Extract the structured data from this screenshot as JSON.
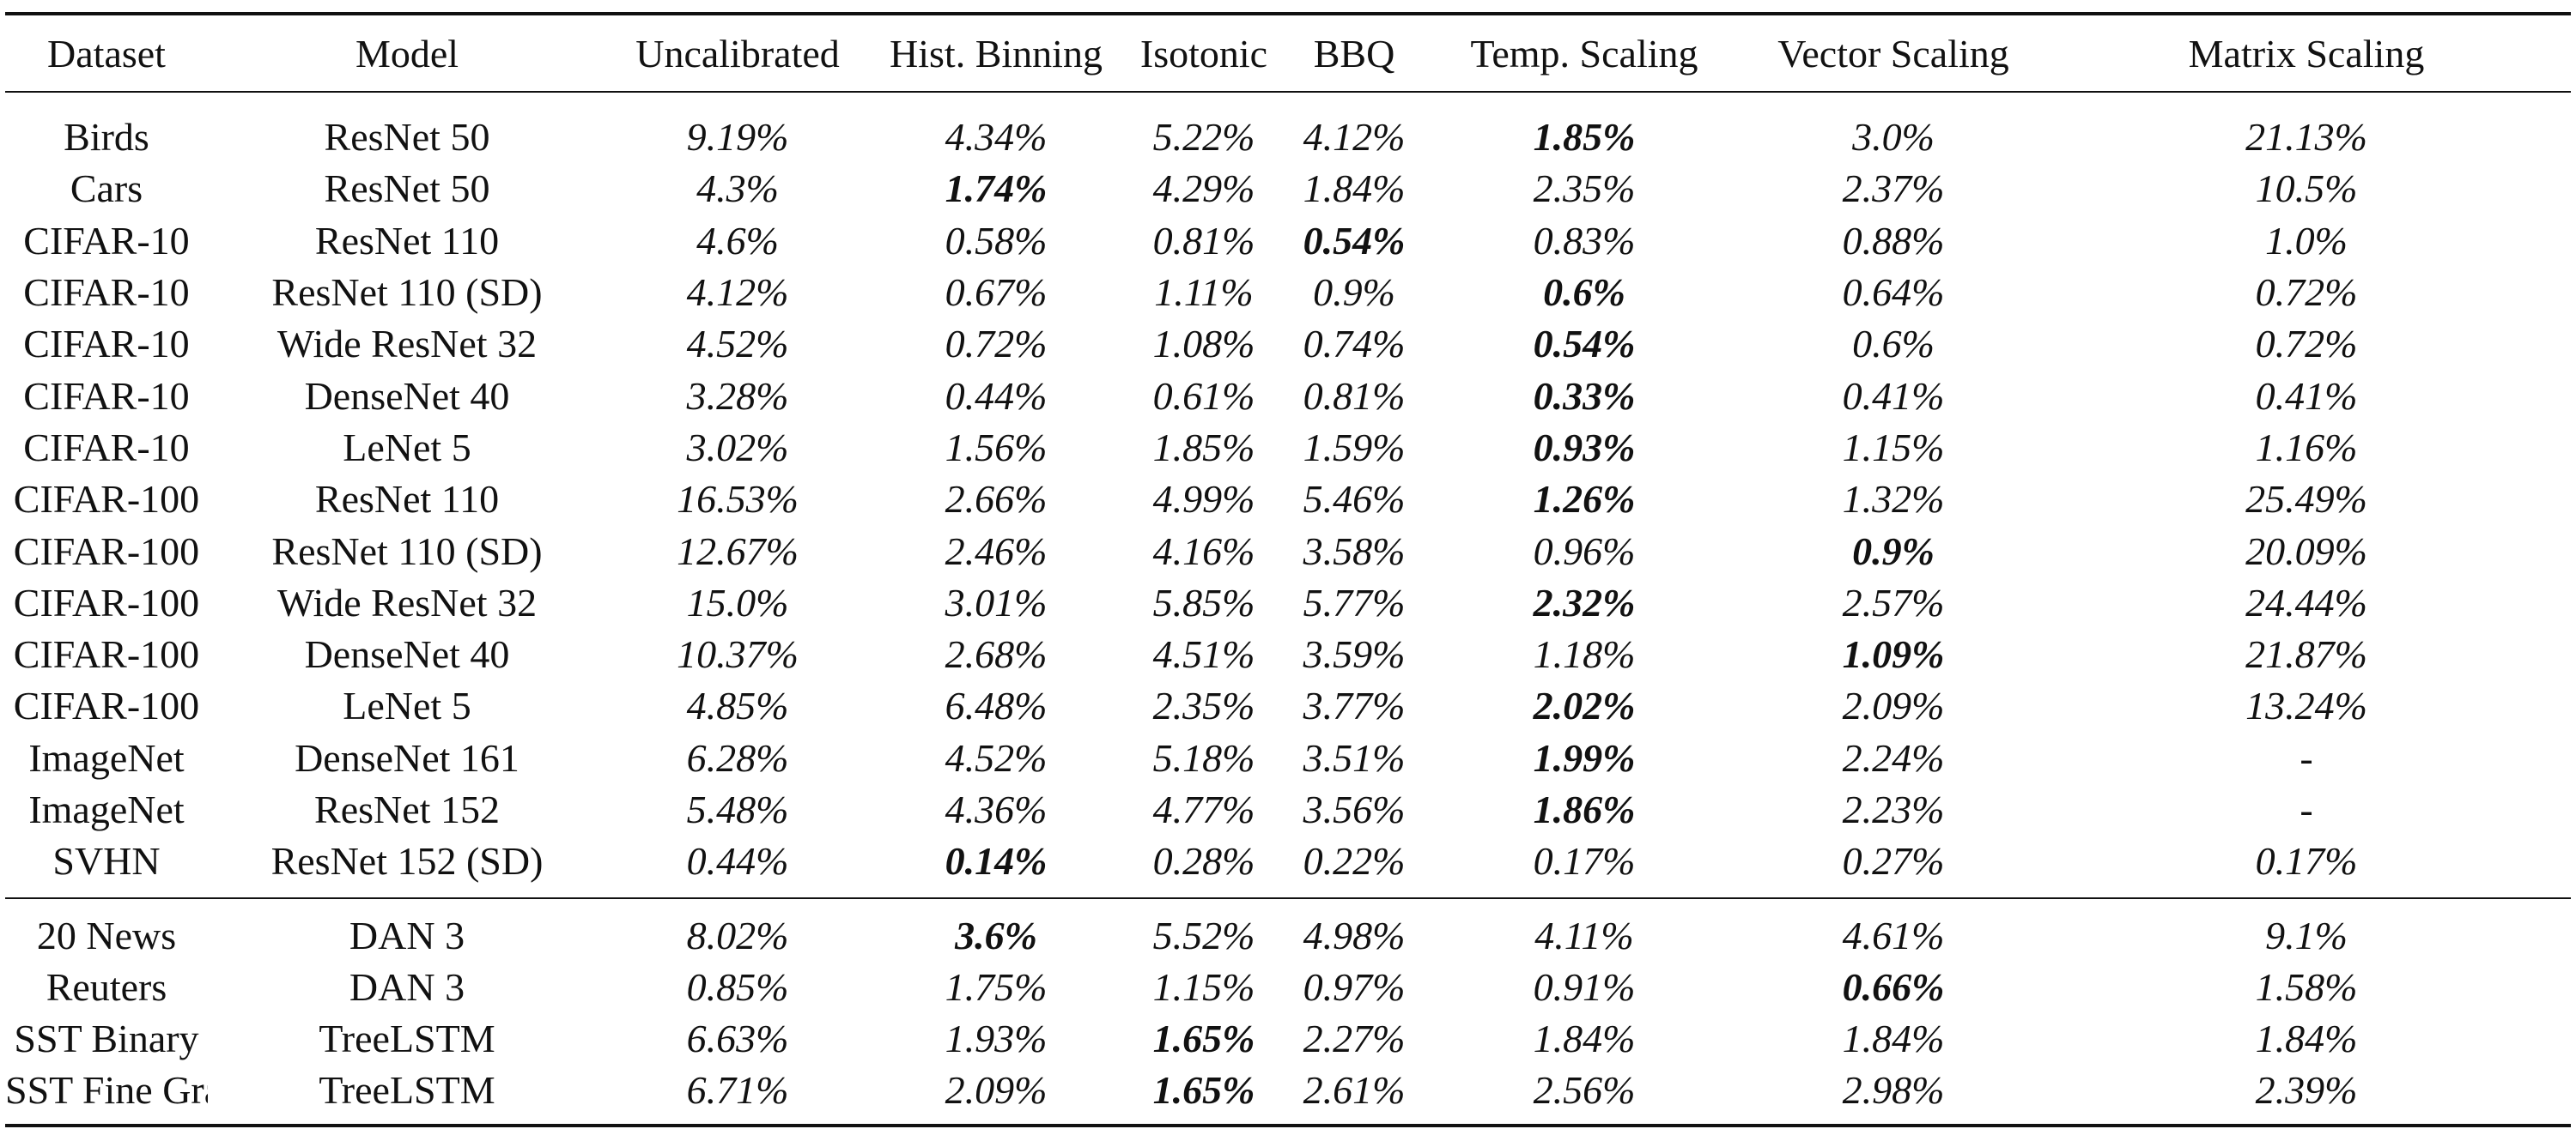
{
  "table": {
    "columns": [
      "Dataset",
      "Model",
      "Uncalibrated",
      "Hist. Binning",
      "Isotonic",
      "BBQ",
      "Temp. Scaling",
      "Vector Scaling",
      "Matrix Scaling"
    ],
    "groups": [
      {
        "rows": [
          {
            "dataset": "Birds",
            "model": "ResNet 50",
            "values": [
              "9.19%",
              "4.34%",
              "5.22%",
              "4.12%",
              "1.85%",
              "3.0%",
              "21.13%"
            ],
            "best_index": 4
          },
          {
            "dataset": "Cars",
            "model": "ResNet 50",
            "values": [
              "4.3%",
              "1.74%",
              "4.29%",
              "1.84%",
              "2.35%",
              "2.37%",
              "10.5%"
            ],
            "best_index": 1
          },
          {
            "dataset": "CIFAR-10",
            "model": "ResNet 110",
            "values": [
              "4.6%",
              "0.58%",
              "0.81%",
              "0.54%",
              "0.83%",
              "0.88%",
              "1.0%"
            ],
            "best_index": 3
          },
          {
            "dataset": "CIFAR-10",
            "model": "ResNet 110 (SD)",
            "values": [
              "4.12%",
              "0.67%",
              "1.11%",
              "0.9%",
              "0.6%",
              "0.64%",
              "0.72%"
            ],
            "best_index": 4
          },
          {
            "dataset": "CIFAR-10",
            "model": "Wide ResNet 32",
            "values": [
              "4.52%",
              "0.72%",
              "1.08%",
              "0.74%",
              "0.54%",
              "0.6%",
              "0.72%"
            ],
            "best_index": 4
          },
          {
            "dataset": "CIFAR-10",
            "model": "DenseNet 40",
            "values": [
              "3.28%",
              "0.44%",
              "0.61%",
              "0.81%",
              "0.33%",
              "0.41%",
              "0.41%"
            ],
            "best_index": 4
          },
          {
            "dataset": "CIFAR-10",
            "model": "LeNet 5",
            "values": [
              "3.02%",
              "1.56%",
              "1.85%",
              "1.59%",
              "0.93%",
              "1.15%",
              "1.16%"
            ],
            "best_index": 4
          },
          {
            "dataset": "CIFAR-100",
            "model": "ResNet 110",
            "values": [
              "16.53%",
              "2.66%",
              "4.99%",
              "5.46%",
              "1.26%",
              "1.32%",
              "25.49%"
            ],
            "best_index": 4
          },
          {
            "dataset": "CIFAR-100",
            "model": "ResNet 110 (SD)",
            "values": [
              "12.67%",
              "2.46%",
              "4.16%",
              "3.58%",
              "0.96%",
              "0.9%",
              "20.09%"
            ],
            "best_index": 5
          },
          {
            "dataset": "CIFAR-100",
            "model": "Wide ResNet 32",
            "values": [
              "15.0%",
              "3.01%",
              "5.85%",
              "5.77%",
              "2.32%",
              "2.57%",
              "24.44%"
            ],
            "best_index": 4
          },
          {
            "dataset": "CIFAR-100",
            "model": "DenseNet 40",
            "values": [
              "10.37%",
              "2.68%",
              "4.51%",
              "3.59%",
              "1.18%",
              "1.09%",
              "21.87%"
            ],
            "best_index": 5
          },
          {
            "dataset": "CIFAR-100",
            "model": "LeNet 5",
            "values": [
              "4.85%",
              "6.48%",
              "2.35%",
              "3.77%",
              "2.02%",
              "2.09%",
              "13.24%"
            ],
            "best_index": 4
          },
          {
            "dataset": "ImageNet",
            "model": "DenseNet 161",
            "values": [
              "6.28%",
              "4.52%",
              "5.18%",
              "3.51%",
              "1.99%",
              "2.24%",
              "-"
            ],
            "best_index": 4
          },
          {
            "dataset": "ImageNet",
            "model": "ResNet 152",
            "values": [
              "5.48%",
              "4.36%",
              "4.77%",
              "3.56%",
              "1.86%",
              "2.23%",
              "-"
            ],
            "best_index": 4
          },
          {
            "dataset": "SVHN",
            "model": "ResNet 152 (SD)",
            "values": [
              "0.44%",
              "0.14%",
              "0.28%",
              "0.22%",
              "0.17%",
              "0.27%",
              "0.17%"
            ],
            "best_index": 1
          }
        ]
      },
      {
        "rows": [
          {
            "dataset": "20 News",
            "model": "DAN 3",
            "values": [
              "8.02%",
              "3.6%",
              "5.52%",
              "4.98%",
              "4.11%",
              "4.61%",
              "9.1%"
            ],
            "best_index": 1
          },
          {
            "dataset": "Reuters",
            "model": "DAN 3",
            "values": [
              "0.85%",
              "1.75%",
              "1.15%",
              "0.97%",
              "0.91%",
              "0.66%",
              "1.58%"
            ],
            "best_index": 5
          },
          {
            "dataset": "SST Binary",
            "model": "TreeLSTM",
            "values": [
              "6.63%",
              "1.93%",
              "1.65%",
              "2.27%",
              "1.84%",
              "1.84%",
              "1.84%"
            ],
            "best_index": 2
          },
          {
            "dataset": "SST Fine Grained",
            "model": "TreeLSTM",
            "values": [
              "6.71%",
              "2.09%",
              "1.65%",
              "2.61%",
              "2.56%",
              "2.98%",
              "2.39%"
            ],
            "best_index": 2
          }
        ]
      }
    ]
  }
}
